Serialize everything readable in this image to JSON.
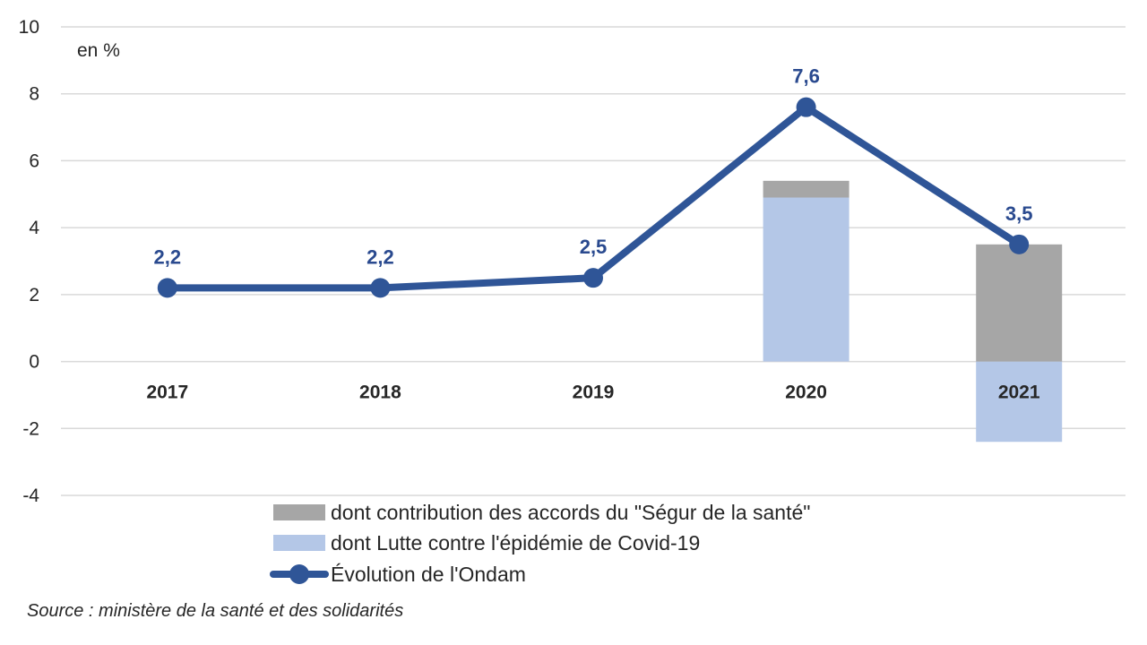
{
  "chart_data": {
    "type": "bar",
    "unit_label": "en %",
    "categories": [
      "2017",
      "2018",
      "2019",
      "2020",
      "2021"
    ],
    "ylim": [
      -4,
      10
    ],
    "yticks": [
      "10",
      "8",
      "6",
      "4",
      "2",
      "0",
      "-2",
      "-4"
    ],
    "ytick_values": [
      10,
      8,
      6,
      4,
      2,
      0,
      -2,
      -4
    ],
    "grid": true,
    "legend_position": "bottom",
    "series": [
      {
        "name": "dont contribution des accords du \"Ségur de la santé\"",
        "kind": "bar",
        "color": "#a6a6a6",
        "values": [
          0,
          0,
          0,
          0.5,
          3.5
        ]
      },
      {
        "name": "dont Lutte contre l'épidémie de Covid-19",
        "kind": "bar",
        "color": "#b4c7e7",
        "values": [
          0,
          0,
          0,
          4.9,
          -2.4
        ]
      },
      {
        "name": "Évolution de l'Ondam",
        "kind": "line",
        "color": "#2f5597",
        "values": [
          2.2,
          2.2,
          2.5,
          7.6,
          3.5
        ],
        "labels": [
          "2,2",
          "2,2",
          "2,5",
          "7,6",
          "3,5"
        ]
      }
    ],
    "source": "Source : ministère de la santé et des solidarités"
  }
}
